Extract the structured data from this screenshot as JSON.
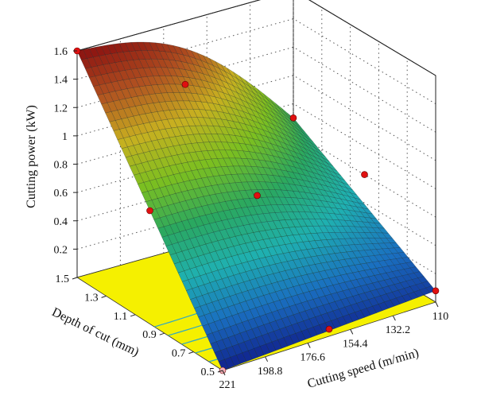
{
  "chart_data": {
    "type": "surface3d",
    "title": "",
    "zlabel": "Cutting power (kW)",
    "xlabel": "Cutting speed (m/min)",
    "ylabel": "Depth of cut (mm)",
    "z_ticks": [
      "0.2",
      "0.4",
      "0.6",
      "0.8",
      "1",
      "1.2",
      "1.4",
      "1.6"
    ],
    "x_ticks": [
      "221",
      "198.8",
      "176.6",
      "154.4",
      "132.2",
      "110"
    ],
    "y_ticks": [
      "0.5",
      "0.7",
      "0.9",
      "1.1",
      "1.3",
      "1.5"
    ],
    "xlim": [
      110,
      221
    ],
    "ylim": [
      0.5,
      1.5
    ],
    "zlim": [
      0,
      1.6
    ],
    "surface_corners": [
      {
        "cutting_speed": 221,
        "depth_of_cut": 1.5,
        "cutting_power": 1.6
      },
      {
        "cutting_speed": 110,
        "depth_of_cut": 1.5,
        "cutting_power": 0.7
      },
      {
        "cutting_speed": 221,
        "depth_of_cut": 0.5,
        "cutting_power": 0.0
      },
      {
        "cutting_speed": 110,
        "depth_of_cut": 0.5,
        "cutting_power": 0.08
      }
    ],
    "design_points": [
      {
        "cutting_speed": 221,
        "depth_of_cut": 1.5,
        "cutting_power": 1.6
      },
      {
        "cutting_speed": 165.5,
        "depth_of_cut": 1.5,
        "cutting_power": 1.15
      },
      {
        "cutting_speed": 221,
        "depth_of_cut": 1.0,
        "cutting_power": 0.8
      },
      {
        "cutting_speed": 165.5,
        "depth_of_cut": 1.0,
        "cutting_power": 0.68
      },
      {
        "cutting_speed": 110,
        "depth_of_cut": 1.0,
        "cutting_power": 0.6
      },
      {
        "cutting_speed": 165.5,
        "depth_of_cut": 0.5,
        "cutting_power": 0.05
      },
      {
        "cutting_speed": 110,
        "depth_of_cut": 0.5,
        "cutting_power": 0.08
      },
      {
        "cutting_speed": 221,
        "depth_of_cut": 0.5,
        "cutting_power": 0.0
      },
      {
        "cutting_speed": 110,
        "depth_of_cut": 1.5,
        "cutting_power": 0.7
      }
    ],
    "contour_base": true,
    "grid": true,
    "colors": {
      "base_plane": "#f5f000",
      "contour": "#2fa8c4",
      "design_point": "#e01010",
      "colormap": [
        "#10208c",
        "#1a6fc0",
        "#1fb0b0",
        "#2aa860",
        "#7cbf20",
        "#c8b020",
        "#b05020",
        "#8a1010"
      ]
    }
  }
}
